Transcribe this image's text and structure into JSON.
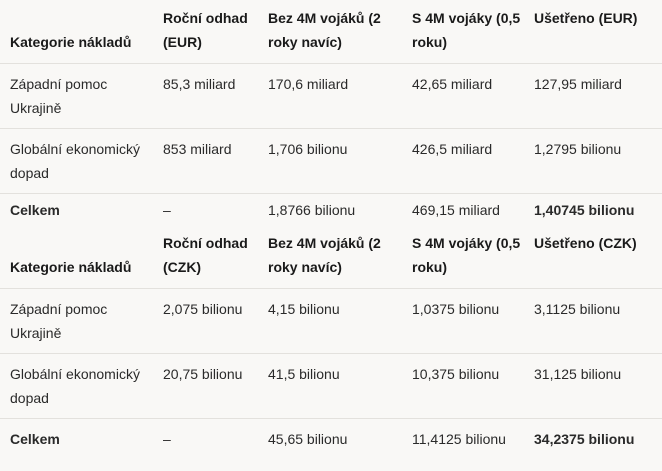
{
  "table_eur": {
    "headers": [
      "Kategorie nákladů",
      "Roční odhad (EUR)",
      "Bez 4M vojáků (2 roky navíc)",
      "S 4M vojáky (0,5 roku)",
      "Ušetřeno (EUR)"
    ],
    "rows": [
      [
        "Západní pomoc Ukrajině",
        "85,3 miliard",
        "170,6 miliard",
        "42,65 miliard",
        "127,95 miliard"
      ],
      [
        "Globální ekonomický dopad",
        "853 miliard",
        "1,706 bilionu",
        "426,5 miliard",
        "1,2795 bilionu"
      ],
      [
        "Celkem",
        "–",
        "1,8766 bilionu",
        "469,15 miliard",
        "1,40745 bilionu"
      ]
    ]
  },
  "table_czk": {
    "headers": [
      "Kategorie nákladů",
      "Roční odhad (CZK)",
      "Bez 4M vojáků (2 roky navíc)",
      "S 4M vojáky (0,5 roku)",
      "Ušetřeno (CZK)"
    ],
    "rows": [
      [
        "Západní pomoc Ukrajině",
        "2,075 bilionu",
        "4,15 bilionu",
        "1,0375 bilionu",
        "3,1125 bilionu"
      ],
      [
        "Globální ekonomický dopad",
        "20,75 bilionu",
        "41,5 bilionu",
        "10,375 bilionu",
        "31,125 bilionu"
      ],
      [
        "Celkem",
        "–",
        "45,65 bilionu",
        "11,4125 bilionu",
        "34,2375 bilionu"
      ]
    ]
  }
}
